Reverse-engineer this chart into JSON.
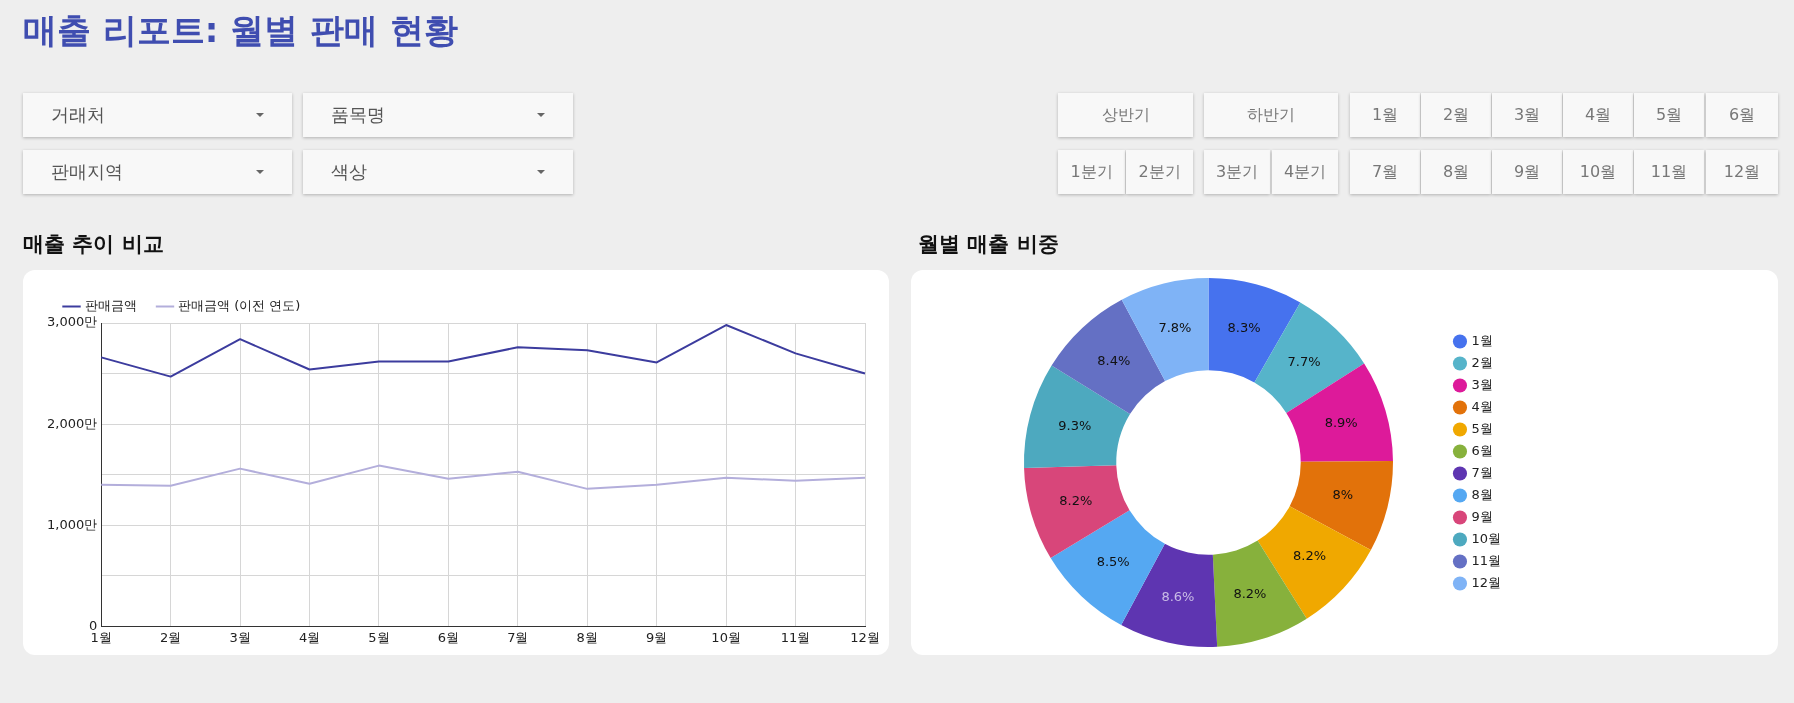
{
  "chart_data": [
    {
      "type": "other",
      "title": "매출 리포트: 월별 판매 현황"
    },
    {
      "type": "line",
      "title": "매출 추이 비교",
      "annotations": [
        "거래처",
        "품목명",
        "상반기",
        "하반기",
        "1월",
        "2월",
        "3월",
        "4월",
        "5월",
        "6월",
        "판매지역",
        "색상",
        "1분기",
        "2분기",
        "3분기",
        "4분기",
        "7월",
        "8월",
        "9월",
        "10월",
        "11월",
        "12월"
      ],
      "categories": [
        "1월",
        "2월",
        "3월",
        "4월",
        "5월",
        "6월",
        "7월",
        "8월",
        "9월",
        "10월",
        "11월",
        "12월"
      ],
      "series": [
        {
          "name": "판매금액",
          "color": "#3c3c9e",
          "values": [
            2660,
            2470,
            2840,
            2540,
            2620,
            2620,
            2760,
            2730,
            2610,
            2980,
            2700,
            2500
          ]
        },
        {
          "name": "판매금액 (이전 연도)",
          "color": "#b3aedb",
          "values": [
            1400,
            1390,
            1560,
            1410,
            1590,
            1460,
            1530,
            1360,
            1400,
            1470,
            1440,
            1470
          ]
        }
      ],
      "ylim": [
        0,
        3000
      ],
      "yticks": [
        0,
        {
          "value": 500,
          "label": null
        },
        {
          "value": 1000,
          "label": "1,000만"
        },
        {
          "value": 1500,
          "label": null
        },
        {
          "value": 2000,
          "label": "2,000만"
        },
        {
          "value": 2500,
          "label": null
        },
        {
          "value": 3000,
          "label": "3,000만"
        }
      ],
      "grid": true,
      "legend": "top left",
      "marker": "none",
      "line_style": "solid"
    },
    {
      "type": "donut",
      "title": "월별 매출 비중",
      "categories": [
        "1월",
        "2월",
        "3월",
        "4월",
        "5월",
        "6월",
        "7월",
        "8월",
        "9월",
        "10월",
        "11월",
        "12월"
      ],
      "values": [
        8.3,
        7.7,
        8.9,
        8,
        8.2,
        8.2,
        8.6,
        8.5,
        8.2,
        9.3,
        8.4,
        7.8
      ],
      "value_labels": [
        "8.3%",
        "7.7%",
        "8.9%",
        "8%",
        "8.2%",
        "8.2%",
        "8.6%",
        "8.5%",
        "8.2%",
        "9.3%",
        "8.4%",
        "7.8%"
      ],
      "colors": [
        "#4672ee",
        "#56b4ca",
        "#dd1a9a",
        "#e2720a",
        "#f0a800",
        "#87b13c",
        "#5e35b1",
        "#55a8f2",
        "#d8467a",
        "#4da9bf",
        "#6470c4",
        "#7fb3f6"
      ],
      "legend": "right"
    }
  ]
}
